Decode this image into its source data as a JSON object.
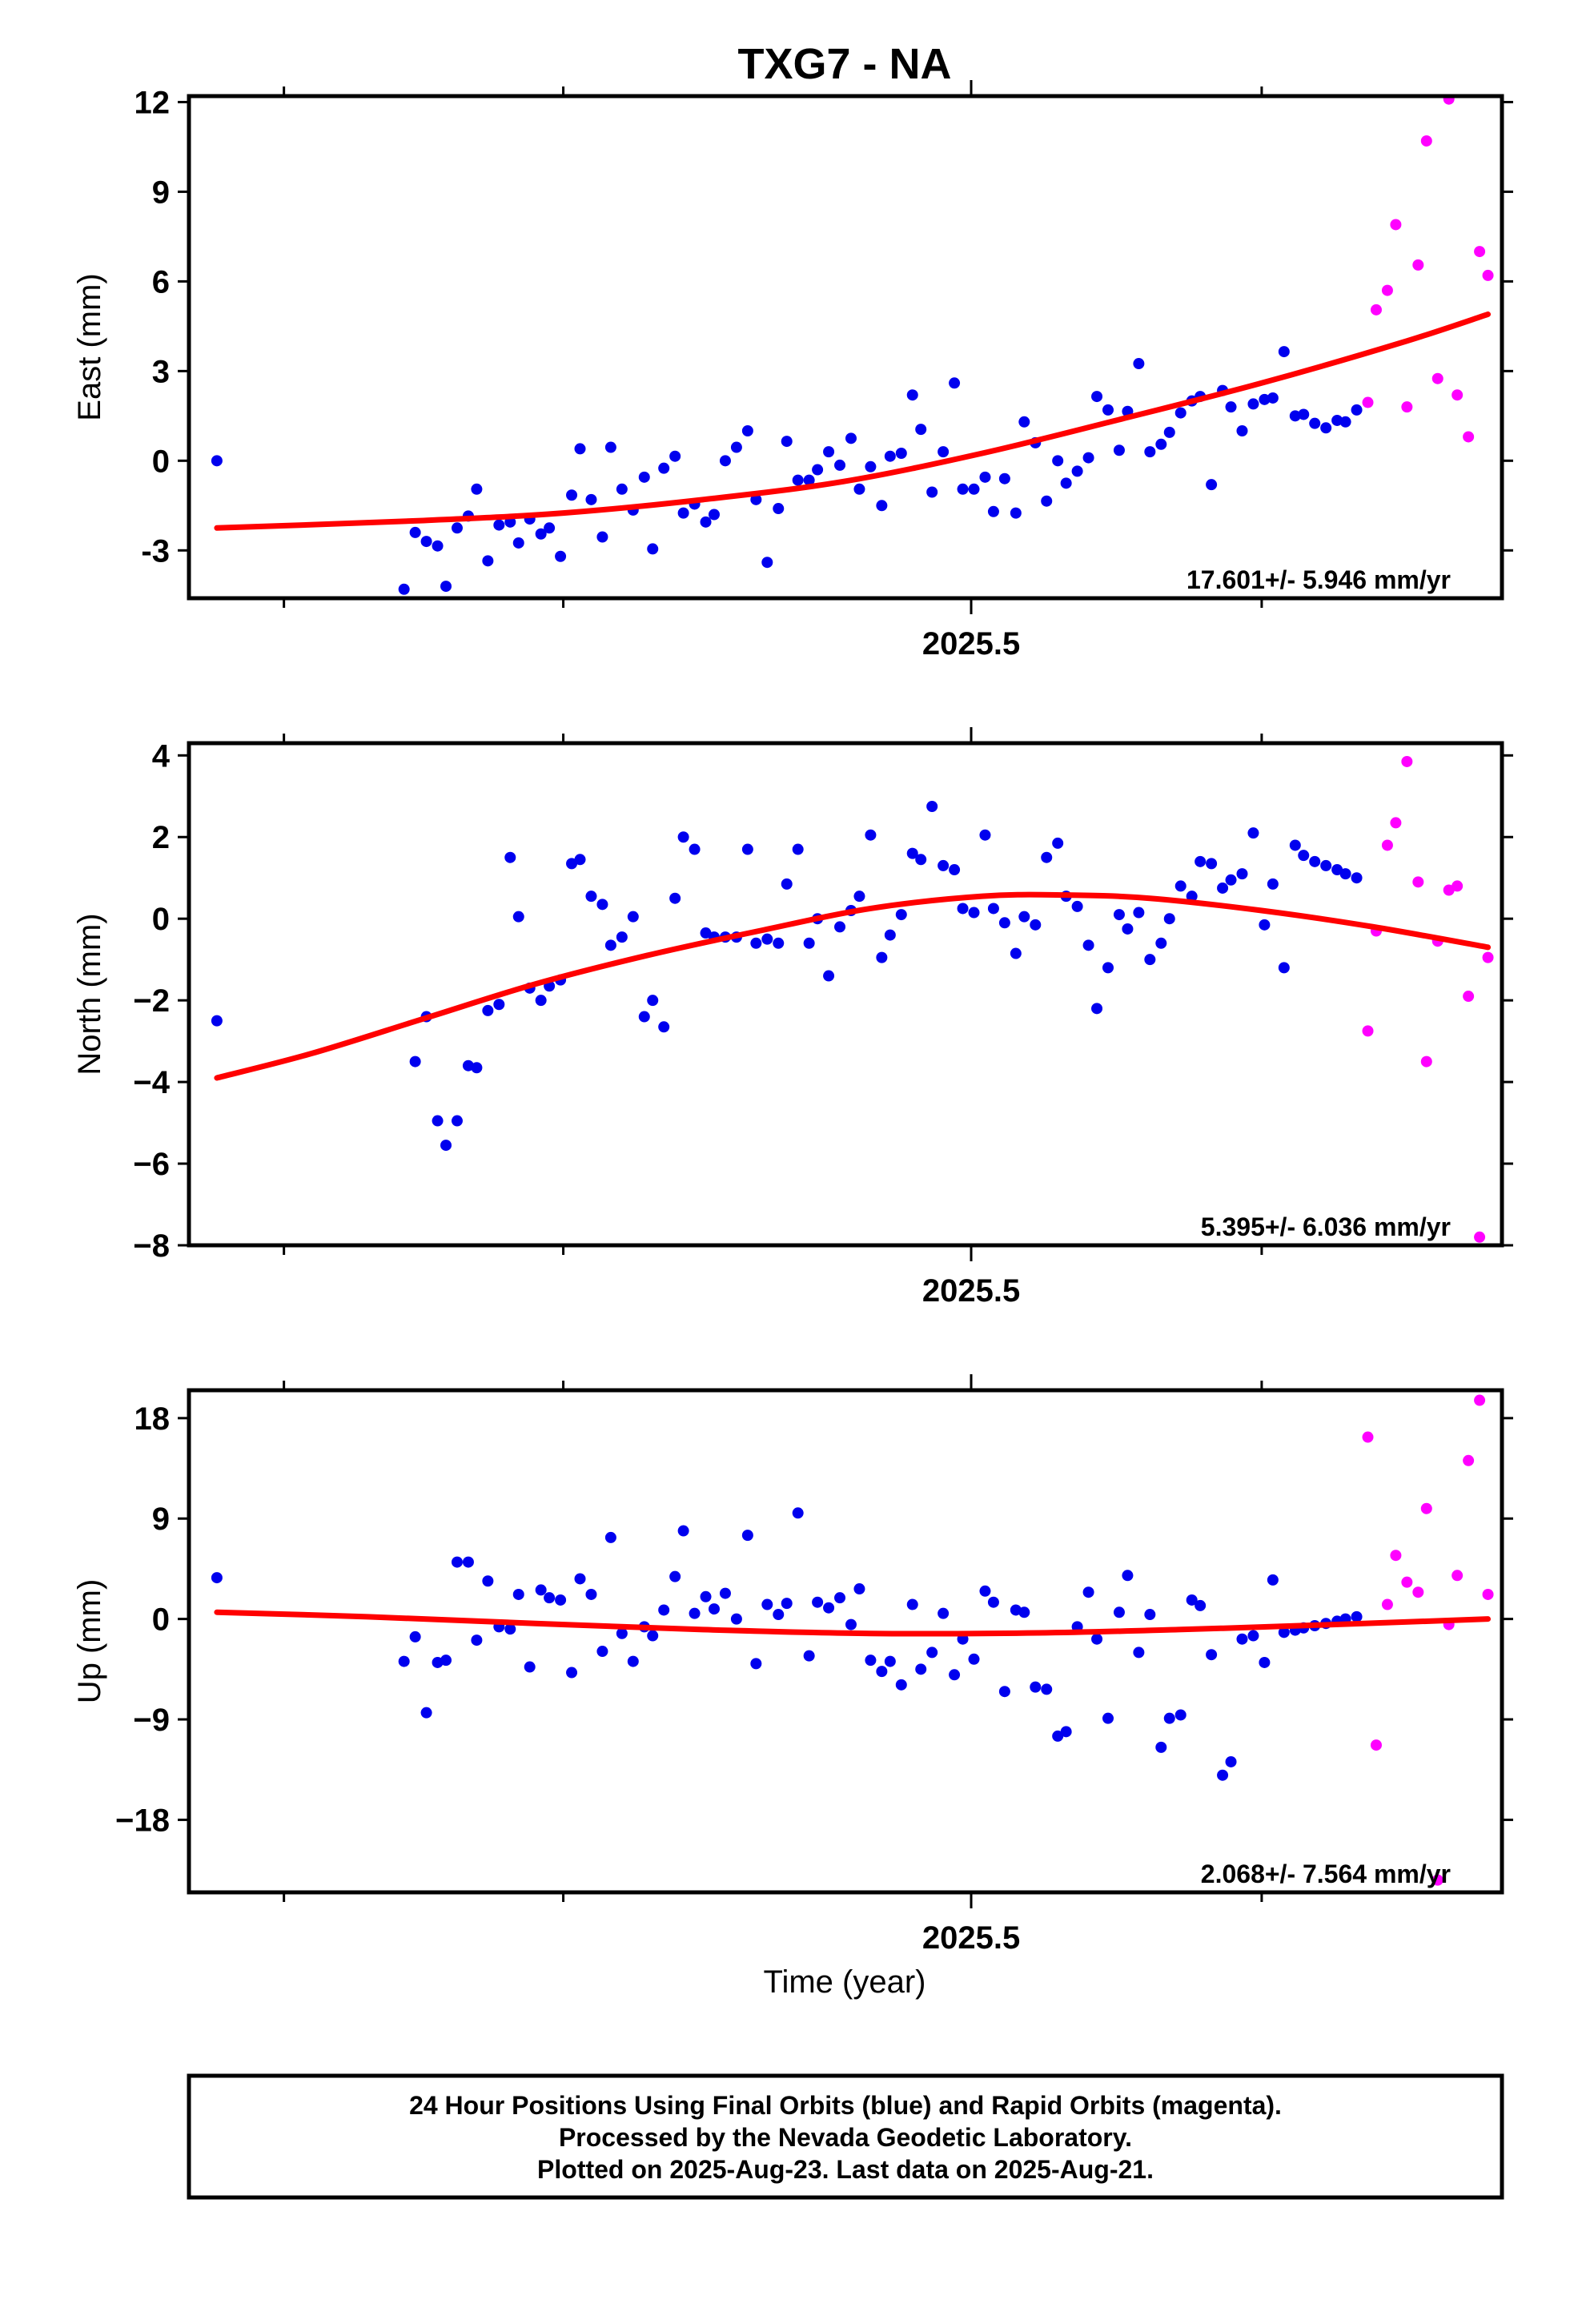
{
  "title": "TXG7 - NA",
  "colors": {
    "final": "#0000ee",
    "rapid": "#ff00ff",
    "fit": "#ff0000",
    "frame": "#000000"
  },
  "xlabel": "Time (year)",
  "footer": {
    "line1": "24 Hour Positions Using Final Orbits (blue) and Rapid Orbits (magenta).",
    "line2": "Processed by the Nevada Geodetic Laboratory.",
    "line3": "Plotted on 2025-Aug-23. Last data on 2025-Aug-21."
  },
  "chart_data": [
    {
      "type": "scatter",
      "ylabel": "East (mm)",
      "ylim": [
        -4.6,
        12.2
      ],
      "yticks": [
        "12",
        "9",
        "6",
        "3",
        "0",
        "-3"
      ],
      "ytick_values": [
        12,
        9,
        6,
        3,
        0,
        -3
      ],
      "xlim": [
        2025.216,
        2025.686
      ],
      "xticks": [
        "2025.5"
      ],
      "xtick_values": [
        2025.496
      ],
      "rate": "17.601+/- 5.946 mm/yr",
      "fit": {
        "x": [
          2025.226,
          2025.3,
          2025.35,
          2025.4,
          2025.45,
          2025.5,
          2025.55,
          2025.6,
          2025.65,
          2025.681
        ],
        "y": [
          -2.25,
          -2.0,
          -1.75,
          -1.3,
          -0.7,
          0.25,
          1.4,
          2.6,
          3.95,
          4.9
        ]
      },
      "series": [
        {
          "orbit": "final",
          "x": [
            2025.226,
            2025.293,
            2025.297,
            2025.301,
            2025.305,
            2025.308,
            2025.312,
            2025.316,
            2025.319,
            2025.323,
            2025.327,
            2025.331,
            2025.334,
            2025.338,
            2025.342,
            2025.345,
            2025.349,
            2025.353,
            2025.356,
            2025.36,
            2025.364,
            2025.367,
            2025.371,
            2025.375,
            2025.379,
            2025.382,
            2025.386,
            2025.39,
            2025.393,
            2025.397,
            2025.401,
            2025.404,
            2025.408,
            2025.412,
            2025.416,
            2025.419,
            2025.423,
            2025.427,
            2025.43,
            2025.434,
            2025.438,
            2025.441,
            2025.445,
            2025.449,
            2025.453,
            2025.456,
            2025.46,
            2025.464,
            2025.467,
            2025.471,
            2025.475,
            2025.478,
            2025.482,
            2025.486,
            2025.49,
            2025.493,
            2025.497,
            2025.501,
            2025.504,
            2025.508,
            2025.512,
            2025.515,
            2025.519,
            2025.523,
            2025.527,
            2025.53,
            2025.534,
            2025.538,
            2025.541,
            2025.545,
            2025.549,
            2025.552,
            2025.556,
            2025.56,
            2025.564,
            2025.567,
            2025.571,
            2025.575,
            2025.578,
            2025.582,
            2025.586,
            2025.589,
            2025.593,
            2025.597,
            2025.601,
            2025.604,
            2025.608,
            2025.612,
            2025.615,
            2025.619,
            2025.623,
            2025.627,
            2025.63,
            2025.634
          ],
          "y": [
            0.0,
            -4.3,
            -2.4,
            -2.7,
            -2.85,
            -4.2,
            -2.25,
            -1.85,
            -0.95,
            -3.35,
            -2.15,
            -2.05,
            -2.75,
            -1.95,
            -2.45,
            -2.25,
            -3.2,
            -1.15,
            0.4,
            -1.3,
            -2.55,
            0.45,
            -0.95,
            -1.65,
            -0.55,
            -2.95,
            -0.25,
            0.15,
            -1.75,
            -1.45,
            -2.05,
            -1.8,
            0.0,
            0.45,
            1.0,
            -1.3,
            -3.4,
            -1.6,
            0.65,
            -0.65,
            -0.65,
            -0.3,
            0.3,
            -0.15,
            0.75,
            -0.95,
            -0.2,
            -1.5,
            0.15,
            0.25,
            2.2,
            1.05,
            -1.05,
            0.3,
            2.6,
            -0.95,
            -0.95,
            -0.55,
            -1.7,
            -0.6,
            -1.75,
            1.3,
            0.6,
            -1.35,
            0.0,
            -0.75,
            -0.35,
            0.1,
            2.15,
            1.7,
            0.35,
            1.65,
            3.25,
            0.3,
            0.55,
            0.95,
            1.6,
            2.0,
            2.15,
            -0.8,
            2.35,
            1.8,
            1.0,
            1.9,
            2.05,
            2.1,
            3.65,
            1.5,
            1.55,
            1.25,
            1.1,
            1.35,
            1.3,
            1.7
          ]
        },
        {
          "orbit": "rapid",
          "x": [
            2025.638,
            2025.641,
            2025.645,
            2025.648,
            2025.652,
            2025.656,
            2025.659,
            2025.663,
            2025.667,
            2025.67,
            2025.674,
            2025.678,
            2025.681
          ],
          "y": [
            1.95,
            5.05,
            5.7,
            7.9,
            1.8,
            6.55,
            10.7,
            2.75,
            12.1,
            2.2,
            0.8,
            7.0,
            6.2
          ]
        }
      ]
    },
    {
      "type": "scatter",
      "ylabel": "North (mm)",
      "ylim": [
        -8.0,
        4.3
      ],
      "yticks": [
        "4",
        "2",
        "0",
        "−2",
        "−4",
        "−6",
        "−8"
      ],
      "ytick_values": [
        4,
        2,
        0,
        -2,
        -4,
        -6,
        -8
      ],
      "xlim": [
        2025.216,
        2025.686
      ],
      "xticks": [
        "2025.5"
      ],
      "xtick_values": [
        2025.496
      ],
      "rate": "5.395+/- 6.036 mm/yr",
      "fit": {
        "x": [
          2025.226,
          2025.26,
          2025.3,
          2025.34,
          2025.38,
          2025.42,
          2025.46,
          2025.5,
          2025.53,
          2025.56,
          2025.6,
          2025.64,
          2025.681
        ],
        "y": [
          -3.9,
          -3.3,
          -2.45,
          -1.6,
          -0.9,
          -0.3,
          0.25,
          0.55,
          0.58,
          0.5,
          0.2,
          -0.2,
          -0.7
        ]
      },
      "series": [
        {
          "orbit": "final",
          "x": [
            2025.226,
            2025.297,
            2025.301,
            2025.305,
            2025.308,
            2025.312,
            2025.316,
            2025.319,
            2025.323,
            2025.327,
            2025.331,
            2025.334,
            2025.338,
            2025.342,
            2025.345,
            2025.349,
            2025.353,
            2025.356,
            2025.36,
            2025.364,
            2025.367,
            2025.371,
            2025.375,
            2025.379,
            2025.382,
            2025.386,
            2025.39,
            2025.393,
            2025.397,
            2025.401,
            2025.404,
            2025.408,
            2025.412,
            2025.416,
            2025.419,
            2025.423,
            2025.427,
            2025.43,
            2025.434,
            2025.438,
            2025.441,
            2025.445,
            2025.449,
            2025.453,
            2025.456,
            2025.46,
            2025.464,
            2025.467,
            2025.471,
            2025.475,
            2025.478,
            2025.482,
            2025.486,
            2025.49,
            2025.493,
            2025.497,
            2025.501,
            2025.504,
            2025.508,
            2025.512,
            2025.515,
            2025.519,
            2025.523,
            2025.527,
            2025.53,
            2025.534,
            2025.538,
            2025.541,
            2025.545,
            2025.549,
            2025.552,
            2025.556,
            2025.56,
            2025.564,
            2025.567,
            2025.571,
            2025.575,
            2025.578,
            2025.582,
            2025.586,
            2025.589,
            2025.593,
            2025.597,
            2025.601,
            2025.604,
            2025.608,
            2025.612,
            2025.615,
            2025.619,
            2025.623,
            2025.627,
            2025.63,
            2025.634
          ],
          "y": [
            -2.5,
            -3.5,
            -2.4,
            -4.95,
            -5.55,
            -4.95,
            -3.6,
            -3.65,
            -2.25,
            -2.1,
            1.5,
            0.05,
            -1.7,
            -2.0,
            -1.65,
            -1.5,
            1.35,
            1.45,
            0.55,
            0.35,
            -0.65,
            -0.45,
            0.05,
            -2.4,
            -2.0,
            -2.65,
            0.5,
            2.0,
            1.7,
            -0.35,
            -0.45,
            -0.45,
            -0.45,
            1.7,
            -0.6,
            -0.5,
            -0.6,
            0.85,
            1.7,
            -0.6,
            0.0,
            -1.4,
            -0.2,
            0.2,
            0.55,
            2.05,
            -0.95,
            -0.4,
            0.1,
            1.6,
            1.45,
            2.75,
            1.3,
            1.2,
            0.25,
            0.15,
            2.05,
            0.25,
            -0.1,
            -0.85,
            0.05,
            -0.15,
            1.5,
            1.85,
            0.55,
            0.3,
            -0.65,
            -2.2,
            -1.2,
            0.1,
            -0.25,
            0.15,
            -1.0,
            -0.6,
            0.0,
            0.8,
            0.55,
            1.4,
            1.35,
            0.75,
            0.95,
            1.1,
            2.1,
            -0.15,
            0.85,
            -1.2,
            1.8,
            1.55,
            1.4,
            1.3,
            1.2,
            1.1,
            1.0
          ]
        },
        {
          "orbit": "rapid",
          "x": [
            2025.638,
            2025.641,
            2025.645,
            2025.648,
            2025.652,
            2025.656,
            2025.659,
            2025.663,
            2025.667,
            2025.67,
            2025.674,
            2025.678,
            2025.681
          ],
          "y": [
            -2.75,
            -0.3,
            1.8,
            2.35,
            3.85,
            0.9,
            -3.5,
            -0.55,
            0.7,
            0.8,
            -1.9,
            -7.8,
            -0.95
          ]
        }
      ]
    },
    {
      "type": "scatter",
      "ylabel": "Up (mm)",
      "ylim": [
        -24.5,
        20.5
      ],
      "yticks": [
        "18",
        "9",
        "0",
        "−9",
        "−18"
      ],
      "ytick_values": [
        18,
        9,
        0,
        -9,
        -18
      ],
      "xlim": [
        2025.216,
        2025.686
      ],
      "xticks": [
        "2025.5"
      ],
      "xtick_values": [
        2025.496
      ],
      "rate": "2.068+/- 7.564 mm/yr",
      "fit": {
        "x": [
          2025.226,
          2025.28,
          2025.34,
          2025.4,
          2025.46,
          2025.52,
          2025.57,
          2025.62,
          2025.681
        ],
        "y": [
          0.6,
          0.2,
          -0.4,
          -0.95,
          -1.3,
          -1.25,
          -0.95,
          -0.55,
          0.0
        ]
      },
      "series": [
        {
          "orbit": "final",
          "x": [
            2025.226,
            2025.293,
            2025.297,
            2025.301,
            2025.305,
            2025.308,
            2025.312,
            2025.316,
            2025.319,
            2025.323,
            2025.327,
            2025.331,
            2025.334,
            2025.338,
            2025.342,
            2025.345,
            2025.349,
            2025.353,
            2025.356,
            2025.36,
            2025.364,
            2025.367,
            2025.371,
            2025.375,
            2025.379,
            2025.382,
            2025.386,
            2025.39,
            2025.393,
            2025.397,
            2025.401,
            2025.404,
            2025.408,
            2025.412,
            2025.416,
            2025.419,
            2025.423,
            2025.427,
            2025.43,
            2025.434,
            2025.438,
            2025.441,
            2025.445,
            2025.449,
            2025.453,
            2025.456,
            2025.46,
            2025.464,
            2025.467,
            2025.471,
            2025.475,
            2025.478,
            2025.482,
            2025.486,
            2025.49,
            2025.493,
            2025.497,
            2025.501,
            2025.504,
            2025.508,
            2025.512,
            2025.515,
            2025.519,
            2025.523,
            2025.527,
            2025.53,
            2025.534,
            2025.538,
            2025.541,
            2025.545,
            2025.549,
            2025.552,
            2025.556,
            2025.56,
            2025.564,
            2025.567,
            2025.571,
            2025.575,
            2025.578,
            2025.582,
            2025.586,
            2025.589,
            2025.593,
            2025.597,
            2025.601,
            2025.604,
            2025.608,
            2025.612,
            2025.615,
            2025.619,
            2025.623,
            2025.627,
            2025.63,
            2025.634
          ],
          "y": [
            3.7,
            -3.8,
            -1.6,
            -8.4,
            -3.9,
            -3.7,
            5.1,
            5.1,
            -1.9,
            3.4,
            -0.7,
            -0.9,
            2.2,
            -4.3,
            2.6,
            1.9,
            1.7,
            -4.8,
            3.6,
            2.2,
            -2.9,
            7.3,
            -1.3,
            -3.8,
            -0.7,
            -1.5,
            0.8,
            3.8,
            7.9,
            0.5,
            2.0,
            0.9,
            2.3,
            0.0,
            7.5,
            -4.0,
            1.3,
            0.4,
            1.4,
            9.5,
            -3.3,
            1.5,
            1.0,
            1.9,
            -0.5,
            2.7,
            -3.7,
            -4.7,
            -3.8,
            -5.9,
            1.3,
            -4.5,
            -3.0,
            0.5,
            -5.0,
            -1.8,
            -3.6,
            2.5,
            1.5,
            -6.5,
            0.8,
            0.6,
            -6.1,
            -6.3,
            -10.5,
            -10.1,
            -0.7,
            2.4,
            -1.8,
            -8.9,
            0.6,
            3.9,
            -3.0,
            0.4,
            -11.5,
            -8.9,
            -8.6,
            1.7,
            1.2,
            -3.2,
            -14.0,
            -12.8,
            -1.8,
            -1.5,
            -3.9,
            3.5,
            -1.2,
            -1.0,
            -0.8,
            -0.6,
            -0.4,
            -0.2,
            0.0,
            0.2
          ]
        },
        {
          "orbit": "rapid",
          "x": [
            2025.638,
            2025.641,
            2025.645,
            2025.648,
            2025.652,
            2025.656,
            2025.659,
            2025.663,
            2025.667,
            2025.67,
            2025.674,
            2025.678,
            2025.681
          ],
          "y": [
            16.3,
            -11.3,
            1.3,
            5.7,
            3.3,
            2.4,
            9.9,
            -23.4,
            -0.5,
            3.9,
            14.2,
            19.6,
            2.2
          ]
        }
      ]
    }
  ]
}
